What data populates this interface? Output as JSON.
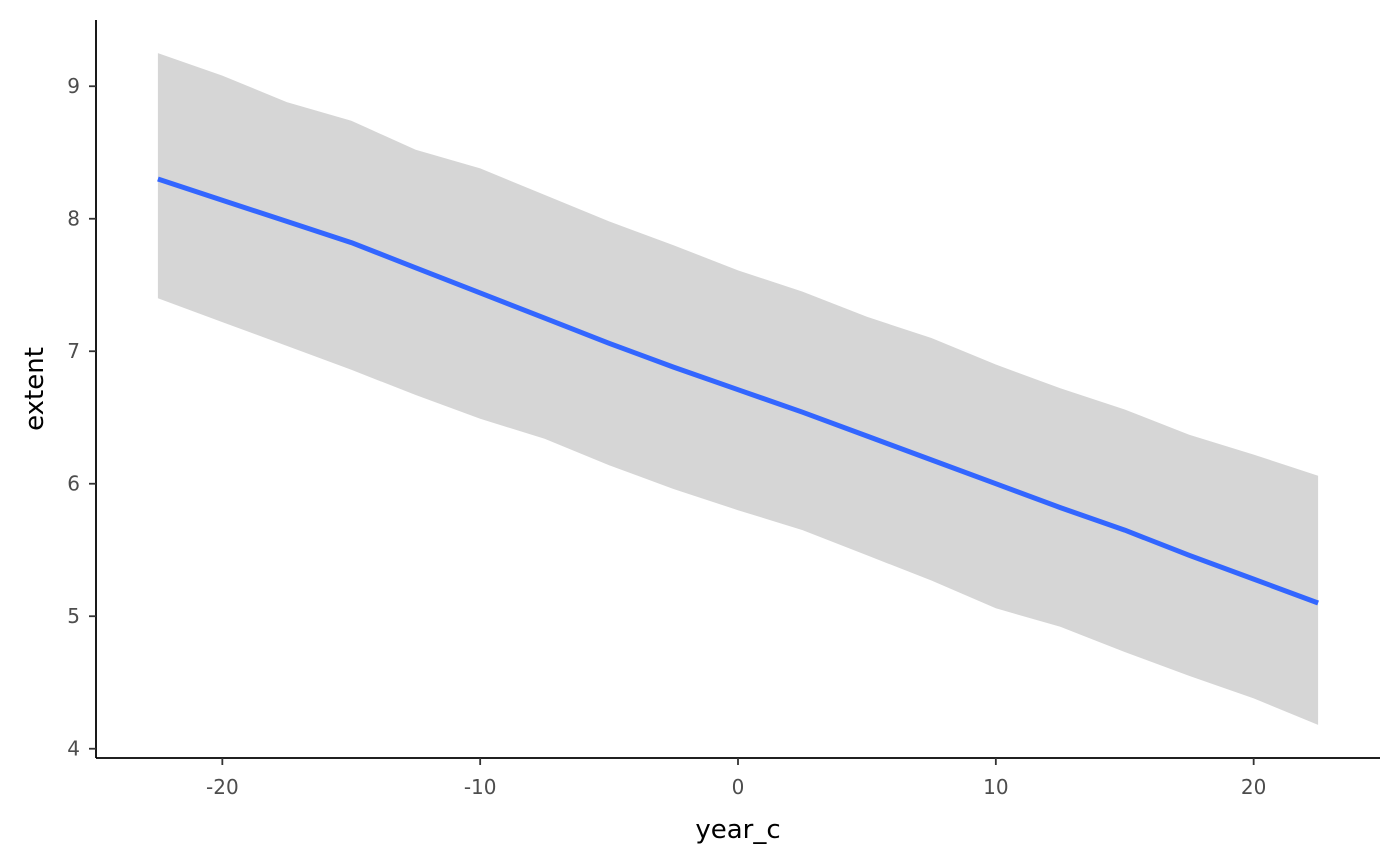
{
  "chart_data": {
    "type": "line",
    "xlabel": "year_c",
    "ylabel": "extent",
    "xlim": [
      -24.9,
      24.9
    ],
    "ylim": [
      3.93,
      9.5
    ],
    "x_ticks": [
      -20,
      -10,
      0,
      10,
      20
    ],
    "y_ticks": [
      4,
      5,
      6,
      7,
      8,
      9
    ],
    "x_tick_labels": [
      "-20",
      "-10",
      "0",
      "10",
      "20"
    ],
    "y_tick_labels": [
      "4",
      "5",
      "6",
      "7",
      "8",
      "9"
    ],
    "grid": false,
    "legend": "none",
    "colors": {
      "line": "#3366ff",
      "band": "#d6d6d6",
      "axis": "#000000",
      "tick_text": "#4d4d4d"
    },
    "series": [
      {
        "x": [
          -22.5,
          -20,
          -17.5,
          -15,
          -12.5,
          -10,
          -7.5,
          -5,
          -2.5,
          0,
          2.5,
          5,
          7.5,
          10,
          12.5,
          15,
          17.5,
          20,
          22.5
        ],
        "y": [
          8.3,
          8.14,
          7.98,
          7.82,
          7.63,
          7.44,
          7.25,
          7.06,
          6.88,
          6.71,
          6.54,
          6.36,
          6.18,
          6.0,
          5.82,
          5.65,
          5.46,
          5.28,
          5.1
        ],
        "ymin": [
          7.4,
          7.22,
          7.04,
          6.86,
          6.67,
          6.49,
          6.34,
          6.14,
          5.96,
          5.8,
          5.65,
          5.46,
          5.27,
          5.06,
          4.92,
          4.73,
          4.55,
          4.38,
          4.18
        ],
        "ymax": [
          9.25,
          9.08,
          8.88,
          8.74,
          8.52,
          8.38,
          8.18,
          7.98,
          7.8,
          7.61,
          7.45,
          7.26,
          7.1,
          6.9,
          6.72,
          6.56,
          6.37,
          6.22,
          6.06
        ]
      }
    ]
  }
}
